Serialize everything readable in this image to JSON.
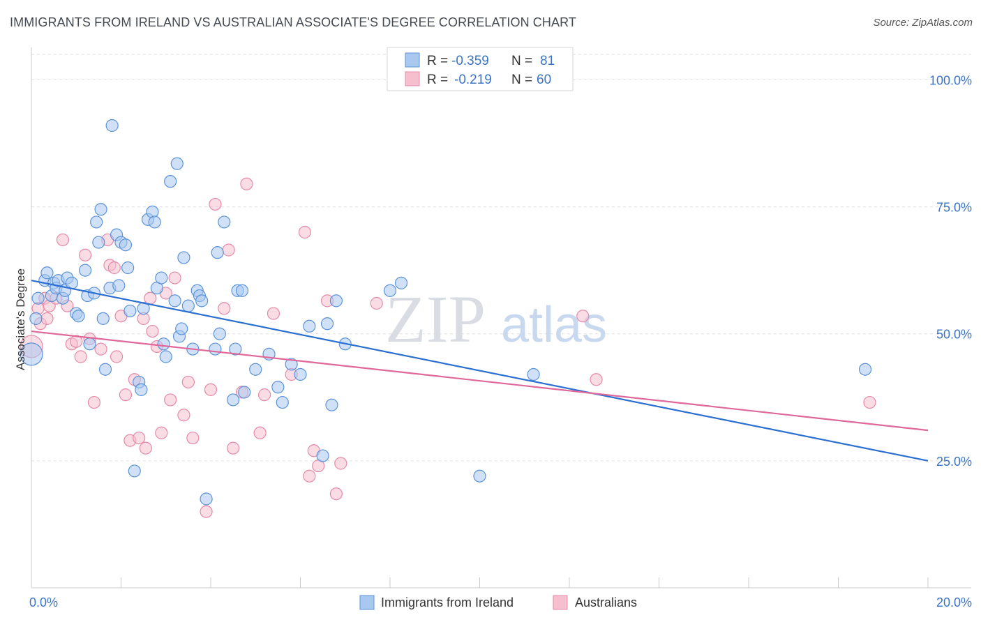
{
  "title": "IMMIGRANTS FROM IRELAND VS AUSTRALIAN ASSOCIATE'S DEGREE CORRELATION CHART",
  "source": "Source: ZipAtlas.com",
  "watermark": {
    "zip": "ZIP",
    "atlas": "atlas"
  },
  "colors": {
    "blue_fill": "#a9c8f0",
    "blue_stroke": "#5b93d9",
    "blue_line": "#2a6fd1",
    "pink_fill": "#f6bfd0",
    "pink_stroke": "#e68aa8",
    "pink_line": "#e0679a",
    "tick_text": "#3b74c4",
    "grid": "#dddddd"
  },
  "legend": {
    "rows": [
      {
        "r_label": "R =",
        "r_value": "-0.359",
        "n_label": "N =",
        "n_value": "81"
      },
      {
        "r_label": "R =",
        "r_value": "-0.219",
        "n_label": "N =",
        "n_value": "60"
      }
    ]
  },
  "chart_data": {
    "type": "scatter",
    "xlabel": "",
    "ylabel": "Associate's Degree",
    "xlim": [
      0,
      20
    ],
    "ylim": [
      0,
      105
    ],
    "x_tick_labels": [
      "0.0%",
      "20.0%"
    ],
    "y_ticks": [
      25,
      50,
      75,
      100
    ],
    "y_tick_labels": [
      "25.0%",
      "50.0%",
      "75.0%",
      "100.0%"
    ],
    "grid": "horizontal-dashed",
    "legend_position": "bottom-center",
    "series": [
      {
        "name": "Immigrants from Ireland",
        "color": "#a9c8f0",
        "trend": {
          "x": [
            0,
            20
          ],
          "y": [
            60.5,
            25.0
          ]
        },
        "points": [
          [
            0.0,
            46.0
          ],
          [
            0.1,
            53.0
          ],
          [
            0.15,
            57.0
          ],
          [
            0.3,
            60.5
          ],
          [
            0.35,
            62.0
          ],
          [
            0.45,
            57.5
          ],
          [
            0.5,
            60.0
          ],
          [
            0.55,
            59.0
          ],
          [
            0.6,
            60.5
          ],
          [
            0.7,
            57.0
          ],
          [
            0.75,
            58.5
          ],
          [
            0.8,
            61.0
          ],
          [
            0.9,
            60.0
          ],
          [
            1.0,
            54.0
          ],
          [
            1.05,
            53.5
          ],
          [
            1.2,
            62.5
          ],
          [
            1.25,
            57.5
          ],
          [
            1.3,
            48.0
          ],
          [
            1.4,
            58.0
          ],
          [
            1.45,
            72.0
          ],
          [
            1.5,
            68.0
          ],
          [
            1.55,
            74.5
          ],
          [
            1.6,
            53.0
          ],
          [
            1.65,
            43.0
          ],
          [
            1.75,
            59.0
          ],
          [
            1.8,
            91.0
          ],
          [
            1.9,
            69.5
          ],
          [
            1.95,
            59.5
          ],
          [
            2.0,
            68.0
          ],
          [
            2.1,
            67.5
          ],
          [
            2.15,
            63.0
          ],
          [
            2.2,
            54.5
          ],
          [
            2.3,
            23.0
          ],
          [
            2.4,
            40.5
          ],
          [
            2.45,
            39.0
          ],
          [
            2.5,
            55.0
          ],
          [
            2.6,
            72.5
          ],
          [
            2.7,
            74.0
          ],
          [
            2.75,
            72.0
          ],
          [
            2.8,
            59.0
          ],
          [
            2.9,
            61.0
          ],
          [
            2.95,
            48.0
          ],
          [
            3.0,
            45.5
          ],
          [
            3.1,
            80.0
          ],
          [
            3.2,
            56.5
          ],
          [
            3.25,
            83.5
          ],
          [
            3.3,
            49.5
          ],
          [
            3.35,
            51.0
          ],
          [
            3.4,
            65.0
          ],
          [
            3.5,
            55.5
          ],
          [
            3.6,
            47.0
          ],
          [
            3.7,
            58.5
          ],
          [
            3.75,
            57.5
          ],
          [
            3.8,
            56.5
          ],
          [
            3.9,
            17.5
          ],
          [
            4.1,
            47.0
          ],
          [
            4.15,
            66.0
          ],
          [
            4.2,
            50.0
          ],
          [
            4.3,
            72.0
          ],
          [
            4.5,
            37.0
          ],
          [
            4.55,
            47.0
          ],
          [
            4.6,
            58.5
          ],
          [
            4.7,
            58.5
          ],
          [
            4.75,
            38.5
          ],
          [
            5.0,
            43.0
          ],
          [
            5.3,
            46.0
          ],
          [
            5.5,
            39.5
          ],
          [
            5.6,
            36.5
          ],
          [
            5.8,
            44.0
          ],
          [
            6.0,
            42.0
          ],
          [
            6.2,
            51.5
          ],
          [
            6.5,
            26.0
          ],
          [
            6.6,
            52.0
          ],
          [
            6.7,
            36.0
          ],
          [
            6.8,
            56.5
          ],
          [
            7.0,
            48.0
          ],
          [
            8.0,
            58.5
          ],
          [
            10.0,
            22.0
          ],
          [
            8.25,
            60.0
          ],
          [
            11.2,
            42.0
          ],
          [
            18.6,
            43.0
          ]
        ]
      },
      {
        "name": "Australians",
        "color": "#f6bfd0",
        "trend": {
          "x": [
            0,
            20
          ],
          "y": [
            50.5,
            31.0
          ]
        },
        "points": [
          [
            0.0,
            47.5
          ],
          [
            0.15,
            55.0
          ],
          [
            0.2,
            52.0
          ],
          [
            0.3,
            57.0
          ],
          [
            0.35,
            53.0
          ],
          [
            0.4,
            55.5
          ],
          [
            0.55,
            57.0
          ],
          [
            0.7,
            68.5
          ],
          [
            0.8,
            55.5
          ],
          [
            0.9,
            48.0
          ],
          [
            1.0,
            48.5
          ],
          [
            1.1,
            45.5
          ],
          [
            1.2,
            65.5
          ],
          [
            1.3,
            49.0
          ],
          [
            1.4,
            36.5
          ],
          [
            1.55,
            47.0
          ],
          [
            1.7,
            68.5
          ],
          [
            1.75,
            63.5
          ],
          [
            1.85,
            63.0
          ],
          [
            1.9,
            45.5
          ],
          [
            2.0,
            53.5
          ],
          [
            2.1,
            38.0
          ],
          [
            2.2,
            29.0
          ],
          [
            2.3,
            41.0
          ],
          [
            2.4,
            29.5
          ],
          [
            2.5,
            53.0
          ],
          [
            2.55,
            27.5
          ],
          [
            2.65,
            57.0
          ],
          [
            2.7,
            50.5
          ],
          [
            2.8,
            47.5
          ],
          [
            2.9,
            30.5
          ],
          [
            3.0,
            58.0
          ],
          [
            3.1,
            37.0
          ],
          [
            3.2,
            61.0
          ],
          [
            3.4,
            34.0
          ],
          [
            3.5,
            40.5
          ],
          [
            3.6,
            29.5
          ],
          [
            3.9,
            15.0
          ],
          [
            4.0,
            39.0
          ],
          [
            4.1,
            75.5
          ],
          [
            4.3,
            55.0
          ],
          [
            4.4,
            66.5
          ],
          [
            4.5,
            27.5
          ],
          [
            4.7,
            38.5
          ],
          [
            4.8,
            79.5
          ],
          [
            5.1,
            30.5
          ],
          [
            5.2,
            38.0
          ],
          [
            5.4,
            54.0
          ],
          [
            5.8,
            42.0
          ],
          [
            6.1,
            70.0
          ],
          [
            6.2,
            22.0
          ],
          [
            6.3,
            27.0
          ],
          [
            6.4,
            24.0
          ],
          [
            6.6,
            56.5
          ],
          [
            6.8,
            18.5
          ],
          [
            7.7,
            56.0
          ],
          [
            12.3,
            53.5
          ],
          [
            12.6,
            41.0
          ],
          [
            18.7,
            36.5
          ],
          [
            6.9,
            24.5
          ]
        ]
      }
    ]
  }
}
